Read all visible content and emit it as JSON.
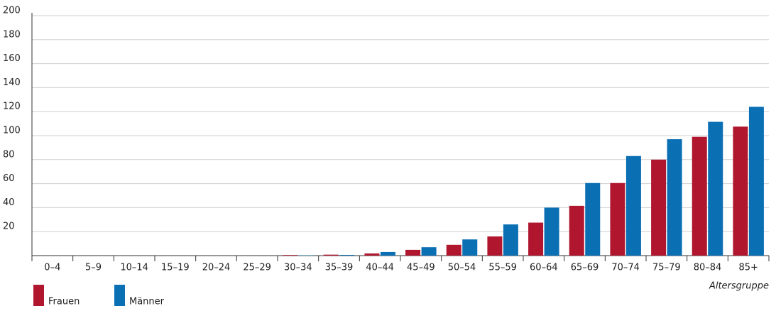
{
  "chart_data": {
    "type": "bar",
    "x_label": "Altersgruppe",
    "categories": [
      "0–4",
      "5–9",
      "10–14",
      "15–19",
      "20–24",
      "25–29",
      "30–34",
      "35–39",
      "40–44",
      "45–49",
      "50–54",
      "55–59",
      "60–64",
      "65–69",
      "70–74",
      "75–79",
      "80–84",
      "85+"
    ],
    "series": [
      {
        "name": "Frauen",
        "color": "#b0172f",
        "values": [
          0,
          0,
          0,
          0,
          0,
          0,
          0.5,
          0.8,
          1.8,
          4.8,
          9,
          16,
          27.5,
          41.5,
          60.5,
          80,
          99,
          107.5
        ]
      },
      {
        "name": "Männer",
        "color": "#0b6fb4",
        "values": [
          0,
          0,
          0,
          0,
          0,
          0,
          0.3,
          0.6,
          3,
          7,
          13.5,
          26,
          40,
          60.5,
          83,
          97,
          111.5,
          124
        ]
      }
    ],
    "ylim": [
      0,
      200
    ],
    "yticks": [
      20,
      40,
      60,
      80,
      100,
      120,
      140,
      160,
      180,
      200
    ],
    "grid": true
  }
}
